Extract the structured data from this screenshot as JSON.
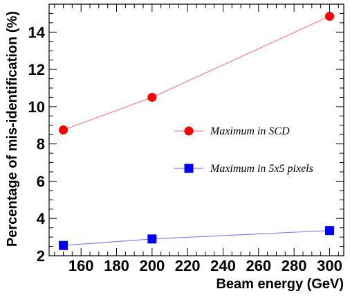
{
  "chart_data": {
    "type": "line",
    "xlabel": "Beam energy (GeV)",
    "ylabel": "Percentage of mis-identification (%)",
    "xlim": [
      142,
      308
    ],
    "ylim": [
      2,
      15.5
    ],
    "x_ticks": [
      160,
      180,
      200,
      220,
      240,
      260,
      280,
      300
    ],
    "y_ticks": [
      2,
      4,
      6,
      8,
      10,
      12,
      14
    ],
    "grid": false,
    "legend_position": "right",
    "series": [
      {
        "name": "Maximum in SCD",
        "marker": "circle",
        "color": "#ff0000",
        "line_color": "#ff8080",
        "x": [
          150,
          200,
          300
        ],
        "y": [
          8.75,
          10.5,
          14.85
        ]
      },
      {
        "name": "Maximum in 5x5 pixels",
        "marker": "square",
        "color": "#0000ff",
        "line_color": "#8080ff",
        "x": [
          150,
          200,
          300
        ],
        "y": [
          2.55,
          2.9,
          3.35
        ]
      }
    ]
  }
}
